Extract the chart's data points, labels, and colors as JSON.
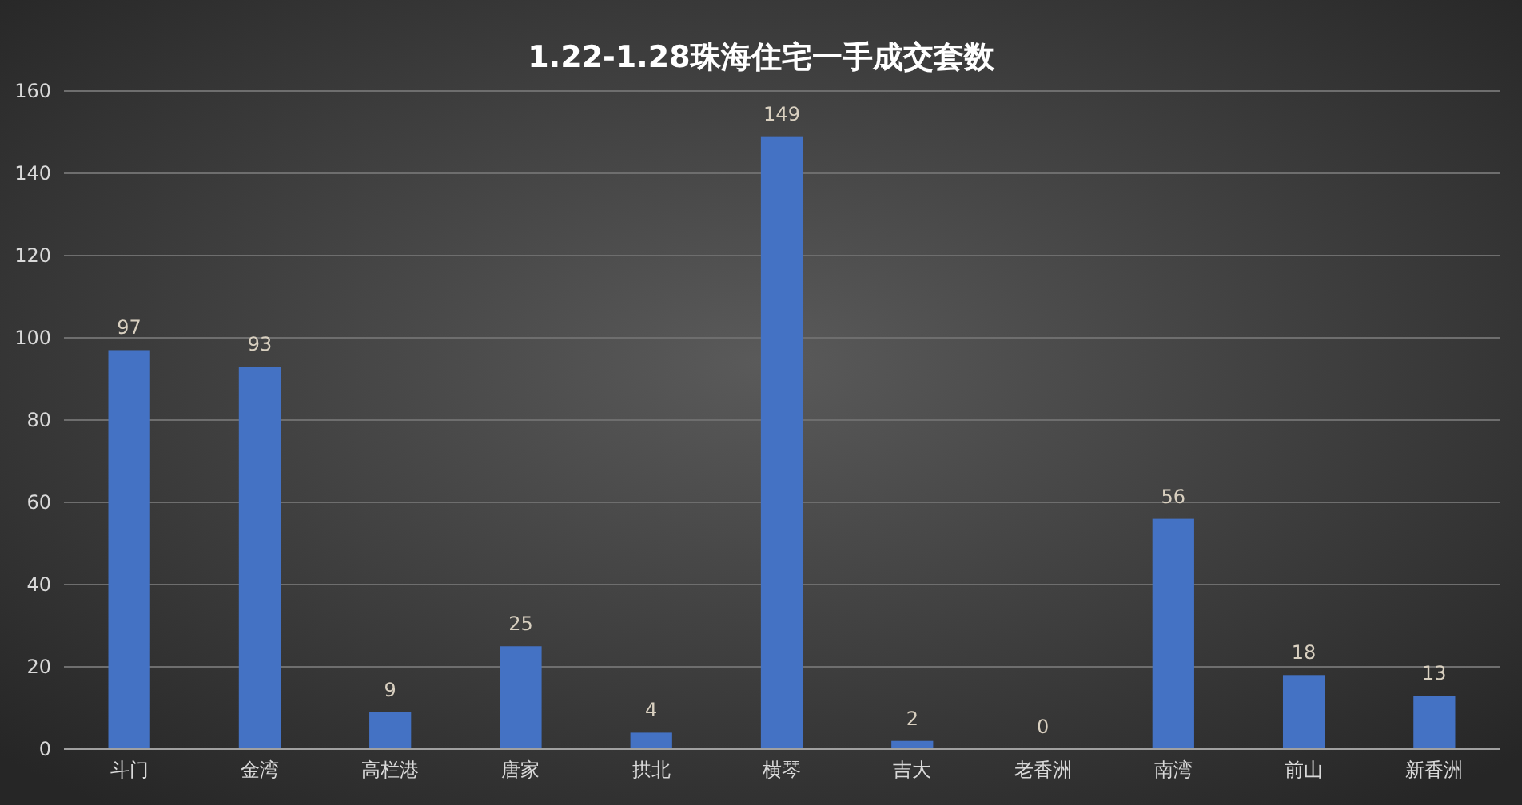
{
  "chart_data": {
    "type": "bar",
    "title": "1.22-1.28珠海住宅一手成交套数",
    "categories": [
      "斗门",
      "金湾",
      "高栏港",
      "唐家",
      "拱北",
      "横琴",
      "吉大",
      "老香洲",
      "南湾",
      "前山",
      "新香洲"
    ],
    "values": [
      97,
      93,
      9,
      25,
      4,
      149,
      2,
      0,
      56,
      18,
      13
    ],
    "color": "#4472c4",
    "ylim": [
      0,
      160
    ],
    "yticks": [
      0,
      20,
      40,
      60,
      80,
      100,
      120,
      140,
      160
    ],
    "grid": "y",
    "data_labels": true
  }
}
